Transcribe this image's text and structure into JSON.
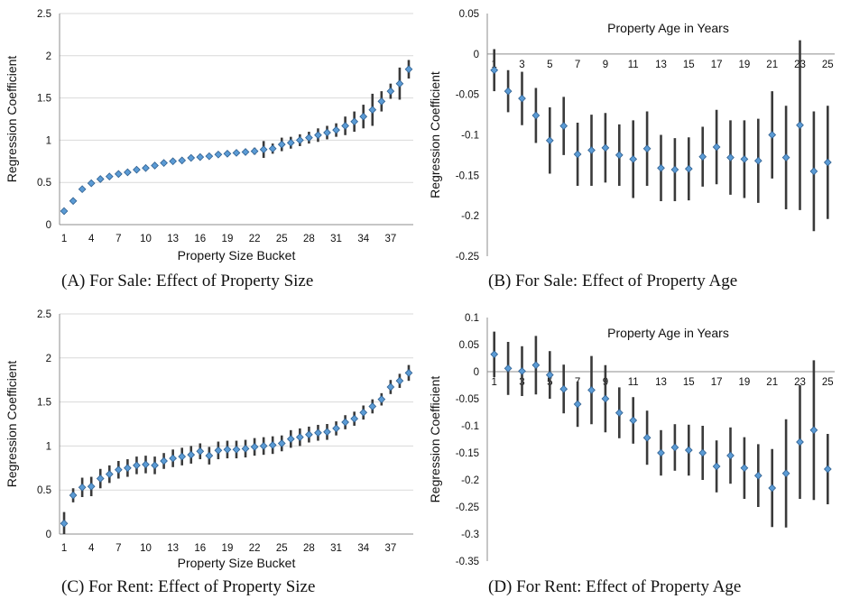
{
  "chart_data": [
    {
      "type": "scatter",
      "caption": "(A) For Sale: Effect of Property Size",
      "inner_title": "",
      "xlabel": "Property Size Bucket",
      "ylabel": "Regression Coefficient",
      "ylim": [
        0,
        2.5
      ],
      "yticks": [
        "0",
        "0.5",
        "1",
        "1.5",
        "2",
        "2.5"
      ],
      "xticks": [
        "1",
        "4",
        "7",
        "10",
        "13",
        "16",
        "19",
        "22",
        "25",
        "28",
        "31",
        "34",
        "37"
      ],
      "x_axis_at": "bottom",
      "grid": true,
      "x": [
        1,
        2,
        3,
        4,
        5,
        6,
        7,
        8,
        9,
        10,
        11,
        12,
        13,
        14,
        15,
        16,
        17,
        18,
        19,
        20,
        21,
        22,
        23,
        24,
        25,
        26,
        27,
        28,
        29,
        30,
        31,
        32,
        33,
        34,
        35,
        36,
        37,
        38,
        39
      ],
      "values": [
        0.16,
        0.28,
        0.42,
        0.49,
        0.54,
        0.57,
        0.6,
        0.62,
        0.65,
        0.67,
        0.7,
        0.73,
        0.75,
        0.76,
        0.79,
        0.8,
        0.81,
        0.83,
        0.84,
        0.85,
        0.86,
        0.87,
        0.89,
        0.9,
        0.95,
        0.97,
        1.0,
        1.03,
        1.06,
        1.09,
        1.12,
        1.17,
        1.22,
        1.28,
        1.36,
        1.46,
        1.58,
        1.67,
        1.84
      ],
      "lower": [
        0.14,
        0.26,
        0.4,
        0.47,
        0.52,
        0.55,
        0.58,
        0.6,
        0.63,
        0.65,
        0.68,
        0.71,
        0.73,
        0.74,
        0.77,
        0.78,
        0.79,
        0.81,
        0.82,
        0.82,
        0.83,
        0.83,
        0.79,
        0.84,
        0.87,
        0.9,
        0.93,
        0.96,
        0.98,
        1.01,
        1.04,
        1.06,
        1.1,
        1.14,
        1.17,
        1.34,
        1.49,
        1.48,
        1.73
      ],
      "upper": [
        0.18,
        0.3,
        0.44,
        0.51,
        0.56,
        0.59,
        0.62,
        0.64,
        0.67,
        0.69,
        0.72,
        0.75,
        0.77,
        0.78,
        0.81,
        0.82,
        0.83,
        0.85,
        0.86,
        0.88,
        0.89,
        0.91,
        0.99,
        0.96,
        1.03,
        1.04,
        1.07,
        1.1,
        1.14,
        1.17,
        1.2,
        1.28,
        1.34,
        1.42,
        1.55,
        1.58,
        1.67,
        1.86,
        1.95
      ]
    },
    {
      "type": "scatter",
      "caption": "(B) For Sale: Effect of Property Age",
      "inner_title": "Property Age in Years",
      "xlabel": "",
      "ylabel": "Regression Coefficient",
      "ylim": [
        -0.25,
        0.05
      ],
      "yticks": [
        "-0.25",
        "-0.2",
        "-0.15",
        "-0.1",
        "-0.05",
        "0",
        "0.05"
      ],
      "xticks": [
        "1",
        "3",
        "5",
        "7",
        "9",
        "11",
        "13",
        "15",
        "17",
        "19",
        "21",
        "23",
        "25"
      ],
      "x_axis_at": "zero",
      "grid": false,
      "x": [
        1,
        2,
        3,
        4,
        5,
        6,
        7,
        8,
        9,
        10,
        11,
        12,
        13,
        14,
        15,
        16,
        17,
        18,
        19,
        20,
        21,
        22,
        23,
        24,
        25
      ],
      "values": [
        -0.02,
        -0.046,
        -0.055,
        -0.076,
        -0.107,
        -0.089,
        -0.124,
        -0.119,
        -0.116,
        -0.125,
        -0.13,
        -0.117,
        -0.141,
        -0.143,
        -0.142,
        -0.127,
        -0.115,
        -0.128,
        -0.13,
        -0.132,
        -0.1,
        -0.128,
        -0.088,
        -0.145,
        -0.134
      ],
      "lower": [
        -0.046,
        -0.072,
        -0.088,
        -0.11,
        -0.148,
        -0.125,
        -0.163,
        -0.163,
        -0.159,
        -0.163,
        -0.178,
        -0.163,
        -0.182,
        -0.182,
        -0.181,
        -0.164,
        -0.161,
        -0.174,
        -0.178,
        -0.184,
        -0.154,
        -0.192,
        -0.193,
        -0.219,
        -0.204
      ],
      "upper": [
        0.006,
        -0.02,
        -0.022,
        -0.042,
        -0.066,
        -0.053,
        -0.085,
        -0.075,
        -0.073,
        -0.087,
        -0.082,
        -0.071,
        -0.1,
        -0.104,
        -0.103,
        -0.09,
        -0.069,
        -0.082,
        -0.082,
        -0.08,
        -0.046,
        -0.064,
        0.017,
        -0.071,
        -0.064
      ]
    },
    {
      "type": "scatter",
      "caption": "(C) For Rent: Effect of Property Size",
      "inner_title": "",
      "xlabel": "Property Size Bucket",
      "ylabel": "Regression Coefficient",
      "ylim": [
        0,
        2.5
      ],
      "yticks": [
        "0",
        "0.5",
        "1",
        "1.5",
        "2",
        "2.5"
      ],
      "xticks": [
        "1",
        "4",
        "7",
        "10",
        "13",
        "16",
        "19",
        "22",
        "25",
        "28",
        "31",
        "34",
        "37"
      ],
      "x_axis_at": "bottom",
      "grid": true,
      "x": [
        1,
        2,
        3,
        4,
        5,
        6,
        7,
        8,
        9,
        10,
        11,
        12,
        13,
        14,
        15,
        16,
        17,
        18,
        19,
        20,
        21,
        22,
        23,
        24,
        25,
        26,
        27,
        28,
        29,
        30,
        31,
        32,
        33,
        34,
        35,
        36,
        37,
        38,
        39
      ],
      "values": [
        0.12,
        0.44,
        0.53,
        0.54,
        0.63,
        0.68,
        0.73,
        0.75,
        0.78,
        0.79,
        0.78,
        0.83,
        0.86,
        0.88,
        0.9,
        0.94,
        0.89,
        0.95,
        0.96,
        0.96,
        0.97,
        0.99,
        1.0,
        1.01,
        1.03,
        1.08,
        1.1,
        1.13,
        1.15,
        1.16,
        1.2,
        1.27,
        1.31,
        1.38,
        1.45,
        1.53,
        1.67,
        1.74,
        1.83
      ],
      "lower": [
        0.0,
        0.36,
        0.42,
        0.43,
        0.52,
        0.58,
        0.63,
        0.65,
        0.68,
        0.69,
        0.68,
        0.74,
        0.76,
        0.78,
        0.8,
        0.85,
        0.79,
        0.85,
        0.86,
        0.86,
        0.87,
        0.89,
        0.9,
        0.91,
        0.94,
        0.98,
        1.0,
        1.04,
        1.06,
        1.07,
        1.12,
        1.19,
        1.23,
        1.3,
        1.37,
        1.46,
        1.59,
        1.66,
        1.74
      ],
      "upper": [
        0.25,
        0.52,
        0.64,
        0.65,
        0.74,
        0.78,
        0.83,
        0.85,
        0.88,
        0.89,
        0.88,
        0.92,
        0.96,
        0.98,
        1.0,
        1.03,
        0.99,
        1.05,
        1.06,
        1.06,
        1.07,
        1.09,
        1.1,
        1.11,
        1.12,
        1.18,
        1.2,
        1.22,
        1.24,
        1.25,
        1.28,
        1.35,
        1.39,
        1.46,
        1.53,
        1.6,
        1.75,
        1.82,
        1.92
      ]
    },
    {
      "type": "scatter",
      "caption": "(D) For Rent: Effect of Property Age",
      "inner_title": "Property Age in Years",
      "xlabel": "",
      "ylabel": "Regression Coefficient",
      "ylim": [
        -0.35,
        0.1
      ],
      "yticks": [
        "-0.35",
        "-0.3",
        "-0.25",
        "-0.2",
        "-0.15",
        "-0.1",
        "-0.05",
        "0",
        "0.05",
        "0.1"
      ],
      "xticks": [
        "1",
        "3",
        "5",
        "7",
        "9",
        "11",
        "13",
        "15",
        "17",
        "19",
        "21",
        "23",
        "25"
      ],
      "x_axis_at": "zero",
      "grid": false,
      "x": [
        1,
        2,
        3,
        4,
        5,
        6,
        7,
        8,
        9,
        10,
        11,
        12,
        13,
        14,
        15,
        16,
        17,
        18,
        19,
        20,
        21,
        22,
        23,
        24,
        25
      ],
      "values": [
        0.032,
        0.006,
        0.001,
        0.012,
        -0.006,
        -0.032,
        -0.06,
        -0.034,
        -0.05,
        -0.076,
        -0.09,
        -0.122,
        -0.15,
        -0.14,
        -0.145,
        -0.15,
        -0.175,
        -0.155,
        -0.178,
        -0.192,
        -0.215,
        -0.188,
        -0.13,
        -0.108,
        -0.18
      ],
      "lower": [
        -0.01,
        -0.043,
        -0.045,
        -0.042,
        -0.05,
        -0.077,
        -0.102,
        -0.097,
        -0.112,
        -0.123,
        -0.133,
        -0.172,
        -0.192,
        -0.183,
        -0.192,
        -0.2,
        -0.223,
        -0.207,
        -0.235,
        -0.25,
        -0.287,
        -0.288,
        -0.235,
        -0.237,
        -0.245
      ],
      "upper": [
        0.074,
        0.055,
        0.047,
        0.066,
        0.038,
        0.013,
        -0.018,
        0.029,
        0.012,
        -0.029,
        -0.047,
        -0.072,
        -0.108,
        -0.097,
        -0.098,
        -0.1,
        -0.127,
        -0.103,
        -0.121,
        -0.134,
        -0.143,
        -0.088,
        -0.025,
        0.021,
        -0.115
      ]
    }
  ]
}
